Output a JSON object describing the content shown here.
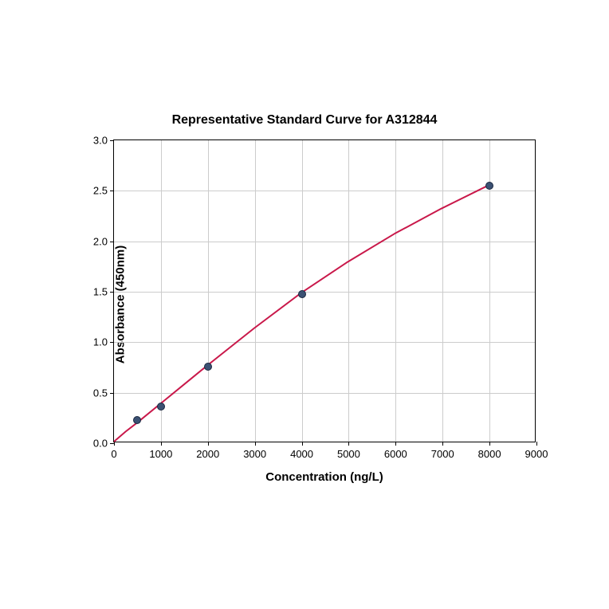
{
  "chart": {
    "type": "scatter-with-curve",
    "title": "Representative Standard Curve for A312844",
    "title_fontsize": 16,
    "title_fontweight": "bold",
    "xlabel": "Concentration (ng/L)",
    "ylabel": "Absorbance (450nm)",
    "label_fontsize": 15,
    "label_fontweight": "bold",
    "tick_fontsize": 13,
    "xlim": [
      0,
      9000
    ],
    "ylim": [
      0.0,
      3.0
    ],
    "xticks": [
      0,
      1000,
      2000,
      3000,
      4000,
      5000,
      6000,
      7000,
      8000,
      9000
    ],
    "yticks": [
      0.0,
      0.5,
      1.0,
      1.5,
      2.0,
      2.5,
      3.0
    ],
    "grid": true,
    "grid_color": "#cccccc",
    "border_color": "#000000",
    "background_color": "#ffffff",
    "data_points": {
      "x": [
        500,
        1000,
        2000,
        4000,
        8000
      ],
      "y": [
        0.23,
        0.36,
        0.76,
        1.48,
        2.55
      ]
    },
    "marker": {
      "style": "circle",
      "size": 10,
      "fill_color": "#3b5173",
      "edge_color": "#1a2840"
    },
    "curve": {
      "color": "#c9184a",
      "width": 2,
      "points_x": [
        0,
        250,
        500,
        1000,
        1500,
        2000,
        3000,
        4000,
        5000,
        6000,
        7000,
        8000
      ],
      "points_y": [
        0.0,
        0.1,
        0.19,
        0.38,
        0.57,
        0.76,
        1.13,
        1.48,
        1.79,
        2.07,
        2.32,
        2.55
      ]
    }
  }
}
